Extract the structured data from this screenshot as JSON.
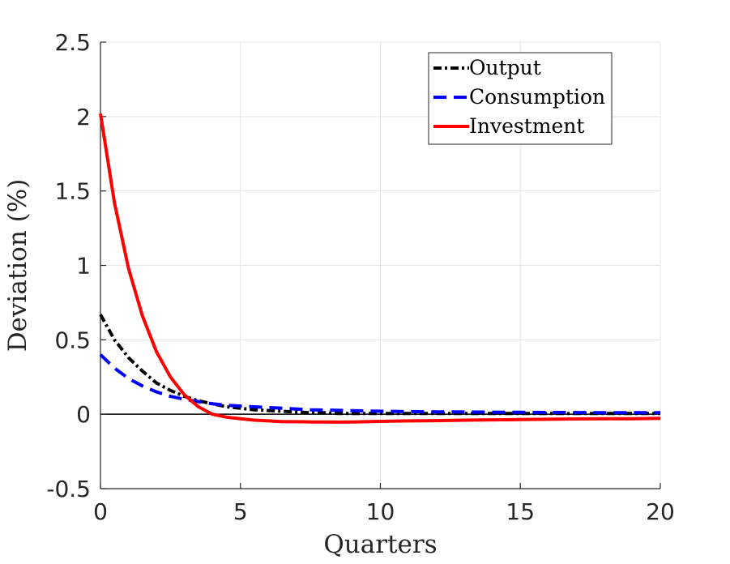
{
  "chart_data": {
    "type": "line",
    "xlabel": "Quarters",
    "ylabel": "Deviation (%)",
    "xlim": [
      0,
      20
    ],
    "ylim": [
      -0.5,
      2.5
    ],
    "xticks": [
      0,
      5,
      10,
      15,
      20
    ],
    "yticks": [
      -0.5,
      0,
      0.5,
      1,
      1.5,
      2,
      2.5
    ],
    "xtick_labels": [
      "0",
      "5",
      "10",
      "15",
      "20"
    ],
    "ytick_labels": [
      "-0.5",
      "0",
      "0.5",
      "1",
      "1.5",
      "2",
      "2.5"
    ],
    "grid": true,
    "zero_line": true,
    "legend_position": "top-right",
    "x": [
      0,
      0.5,
      1,
      1.5,
      2,
      2.5,
      3,
      3.5,
      4,
      4.5,
      5,
      5.5,
      6,
      6.5,
      7,
      7.5,
      8,
      8.5,
      9,
      9.5,
      10,
      11,
      12,
      13,
      14,
      15,
      16,
      17,
      18,
      19,
      20
    ],
    "series": [
      {
        "name": "Output",
        "color": "#000000",
        "style": "dash-dot",
        "values": [
          0.67,
          0.5,
          0.38,
          0.29,
          0.21,
          0.16,
          0.12,
          0.09,
          0.07,
          0.05,
          0.04,
          0.03,
          0.025,
          0.02,
          0.015,
          0.01,
          0.01,
          0.005,
          0.005,
          0.005,
          0.005,
          0.005,
          0.005,
          0.005,
          0.005,
          0.005,
          0.005,
          0.005,
          0.005,
          0.005,
          0.005
        ]
      },
      {
        "name": "Consumption",
        "color": "#0000ff",
        "style": "dashed",
        "values": [
          0.4,
          0.31,
          0.24,
          0.19,
          0.15,
          0.12,
          0.1,
          0.085,
          0.07,
          0.06,
          0.055,
          0.05,
          0.045,
          0.04,
          0.035,
          0.03,
          0.028,
          0.026,
          0.024,
          0.022,
          0.02,
          0.018,
          0.016,
          0.015,
          0.014,
          0.013,
          0.012,
          0.011,
          0.01,
          0.01,
          0.01
        ]
      },
      {
        "name": "Investment",
        "color": "#ff0000",
        "style": "solid",
        "values": [
          2.02,
          1.42,
          0.98,
          0.66,
          0.42,
          0.25,
          0.13,
          0.05,
          0.0,
          -0.02,
          -0.03,
          -0.04,
          -0.045,
          -0.05,
          -0.05,
          -0.052,
          -0.052,
          -0.053,
          -0.052,
          -0.05,
          -0.048,
          -0.045,
          -0.043,
          -0.04,
          -0.038,
          -0.036,
          -0.034,
          -0.032,
          -0.03,
          -0.03,
          -0.028
        ]
      }
    ]
  }
}
